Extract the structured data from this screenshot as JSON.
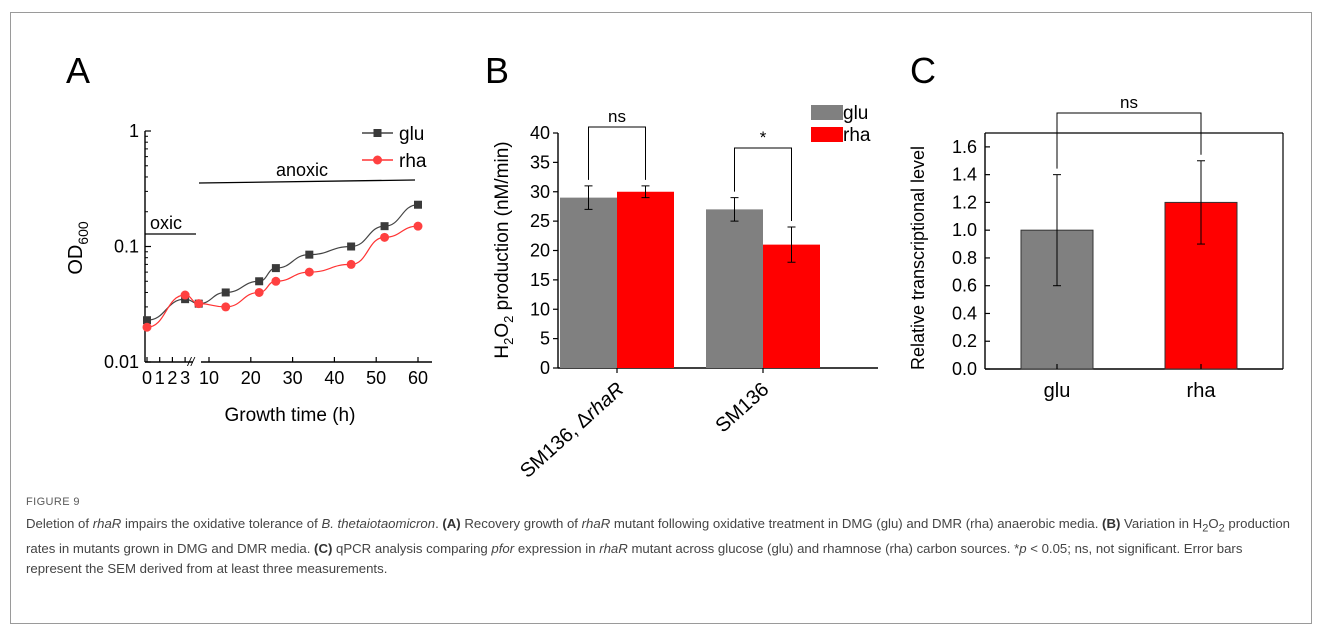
{
  "panel_letters": [
    "A",
    "B",
    "C"
  ],
  "caption": {
    "label": "FIGURE 9",
    "text_html": "Deletion of <i>rhaR</i> impairs the oxidative tolerance of <i>B. thetaiotaomicron</i>. <b>(A)</b> Recovery growth of <i>rhaR</i> mutant following oxidative treatment in DMG (glu) and DMR (rha) anaerobic media. <b>(B)</b> Variation in H<sub>2</sub>O<sub>2</sub> production rates in mutants grown in DMG and DMR media. <b>(C)</b> qPCR analysis comparing <i>pfor</i> expression in <i>rhaR</i> mutant across glucose (glu) and rhamnose (rha) carbon sources. *<i>p</i> &lt; 0.05; ns, not significant. Error bars represent the SEM derived from at least three measurements."
  },
  "colors": {
    "glu": "#808080",
    "rha": "#ff0000",
    "glu_line": "#444444",
    "rha_line": "#ff3333"
  },
  "chart_data": [
    {
      "panel": "A",
      "type": "line",
      "ylabel": "OD600",
      "xlabel": "Growth time (h)",
      "yscale": "log",
      "ylim": [
        0.01,
        1
      ],
      "yticks": [
        "0.01",
        "0.1",
        "1"
      ],
      "xticks": [
        "0",
        "1",
        "2",
        "3",
        "10",
        "20",
        "30",
        "40",
        "50",
        "60"
      ],
      "axis_break": "//",
      "annotations": [
        "oxic",
        "anoxic"
      ],
      "legend": [
        "glu",
        "rha"
      ],
      "legend_position": "top-right",
      "series": [
        {
          "name": "glu",
          "x": [
            0,
            3,
            7,
            14,
            22,
            26,
            34,
            44,
            52,
            60
          ],
          "y": [
            0.023,
            0.035,
            0.032,
            0.04,
            0.05,
            0.065,
            0.085,
            0.1,
            0.15,
            0.23
          ]
        },
        {
          "name": "rha",
          "x": [
            0,
            3,
            7,
            14,
            22,
            26,
            34,
            44,
            52,
            60
          ],
          "y": [
            0.02,
            0.038,
            0.032,
            0.03,
            0.04,
            0.05,
            0.06,
            0.07,
            0.12,
            0.15
          ]
        }
      ]
    },
    {
      "panel": "B",
      "type": "bar",
      "ylabel": "H2O2 production (nM/min)",
      "categories": [
        "SM136, ΔrhaR",
        "SM136"
      ],
      "ylim": [
        0,
        40
      ],
      "yticks": [
        "0",
        "5",
        "10",
        "15",
        "20",
        "25",
        "30",
        "35",
        "40"
      ],
      "legend": [
        "glu",
        "rha"
      ],
      "legend_position": "top-right",
      "series": [
        {
          "name": "glu",
          "values": [
            29,
            27
          ],
          "errors": [
            2,
            2
          ]
        },
        {
          "name": "rha",
          "values": [
            30,
            21
          ],
          "errors": [
            1,
            3
          ]
        }
      ],
      "significance": [
        "ns",
        "*"
      ]
    },
    {
      "panel": "C",
      "type": "bar",
      "ylabel": "Relative transcriptional level",
      "categories": [
        "glu",
        "rha"
      ],
      "ylim": [
        0,
        1.7
      ],
      "yticks": [
        "0.0",
        "0.2",
        "0.4",
        "0.6",
        "0.8",
        "1.0",
        "1.2",
        "1.4",
        "1.6"
      ],
      "values": [
        1.0,
        1.2
      ],
      "errors": [
        0.4,
        0.3
      ],
      "significance": [
        "ns"
      ]
    }
  ]
}
